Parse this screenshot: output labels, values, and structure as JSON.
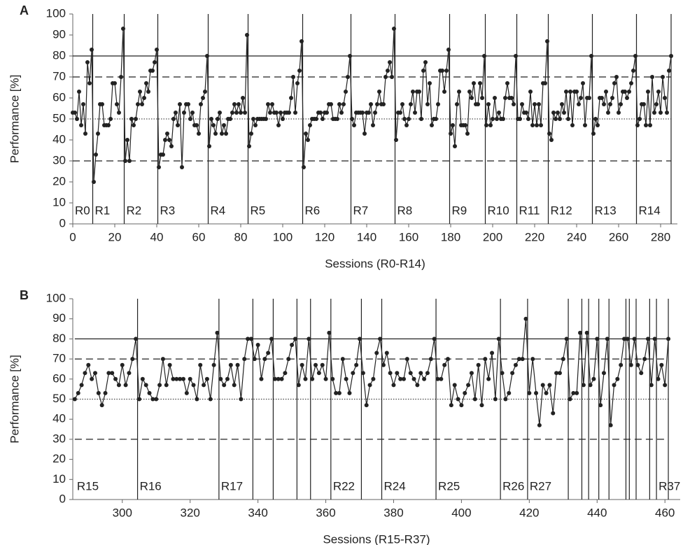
{
  "chart_data": [
    {
      "type": "line",
      "panel_label": "A",
      "ylabel": "Performance [%]",
      "xlabel": "Sessions (R0-R14)",
      "color": "#222222",
      "xlim": [
        0,
        288
      ],
      "ylim": [
        0,
        100
      ],
      "xticks": [
        0,
        20,
        40,
        60,
        80,
        100,
        120,
        140,
        160,
        180,
        200,
        220,
        240,
        260,
        280
      ],
      "yticks": [
        0,
        10,
        20,
        30,
        40,
        50,
        60,
        70,
        80,
        90,
        100
      ],
      "reference_lines": [
        {
          "value": 80,
          "style": "solid"
        },
        {
          "value": 70,
          "style": "dashed"
        },
        {
          "value": 50,
          "style": "dotted"
        },
        {
          "value": 30,
          "style": "dashed"
        }
      ],
      "regions": [
        {
          "label": "R0",
          "end": 9.5
        },
        {
          "label": "R1",
          "end": 24.5
        },
        {
          "label": "R2",
          "end": 40.5
        },
        {
          "label": "R3",
          "end": 64.5
        },
        {
          "label": "R4",
          "end": 83.5
        },
        {
          "label": "R5",
          "end": 109.5
        },
        {
          "label": "R6",
          "end": 132.5
        },
        {
          "label": "R7",
          "end": 153.5
        },
        {
          "label": "R8",
          "end": 179.5
        },
        {
          "label": "R9",
          "end": 196.5
        },
        {
          "label": "R10",
          "end": 211.5
        },
        {
          "label": "R11",
          "end": 226.5
        },
        {
          "label": "R12",
          "end": 247.5
        },
        {
          "label": "R13",
          "end": 268.5
        },
        {
          "label": "R14",
          "end": 285
        }
      ],
      "x": [
        0,
        1,
        2,
        3,
        4,
        5,
        6,
        7,
        8,
        9,
        10,
        11,
        12,
        13,
        14,
        15,
        16,
        17,
        18,
        19,
        20,
        21,
        22,
        23,
        24,
        25,
        26,
        27,
        28,
        29,
        30,
        31,
        32,
        33,
        34,
        35,
        36,
        37,
        38,
        39,
        40,
        41,
        42,
        43,
        44,
        45,
        46,
        47,
        48,
        49,
        50,
        51,
        52,
        53,
        54,
        55,
        56,
        57,
        58,
        59,
        60,
        61,
        62,
        63,
        64,
        65,
        66,
        67,
        68,
        69,
        70,
        71,
        72,
        73,
        74,
        75,
        76,
        77,
        78,
        79,
        80,
        81,
        82,
        83,
        84,
        85,
        86,
        87,
        88,
        89,
        90,
        91,
        92,
        93,
        94,
        95,
        96,
        97,
        98,
        99,
        100,
        101,
        102,
        103,
        104,
        105,
        106,
        107,
        108,
        109,
        110,
        111,
        112,
        113,
        114,
        115,
        116,
        117,
        118,
        119,
        120,
        121,
        122,
        123,
        124,
        125,
        126,
        127,
        128,
        129,
        130,
        131,
        132,
        133,
        134,
        135,
        136,
        137,
        138,
        139,
        140,
        141,
        142,
        143,
        144,
        145,
        146,
        147,
        148,
        149,
        150,
        151,
        152,
        153,
        154,
        155,
        156,
        157,
        158,
        159,
        160,
        161,
        162,
        163,
        164,
        165,
        166,
        167,
        168,
        169,
        170,
        171,
        172,
        173,
        174,
        175,
        176,
        177,
        178,
        179,
        180,
        181,
        182,
        183,
        184,
        185,
        186,
        187,
        188,
        189,
        190,
        191,
        192,
        193,
        194,
        195,
        196,
        197,
        198,
        199,
        200,
        201,
        202,
        203,
        204,
        205,
        206,
        207,
        208,
        209,
        210,
        211,
        212,
        213,
        214,
        215,
        216,
        217,
        218,
        219,
        220,
        221,
        222,
        223,
        224,
        225,
        226,
        227,
        228,
        229,
        230,
        231,
        232,
        233,
        234,
        235,
        236,
        237,
        238,
        239,
        240,
        241,
        242,
        243,
        244,
        245,
        246,
        247,
        248,
        249,
        250,
        251,
        252,
        253,
        254,
        255,
        256,
        257,
        258,
        259,
        260,
        261,
        262,
        263,
        264,
        265,
        266,
        267,
        268,
        269,
        270,
        271,
        272,
        273,
        274,
        275,
        276,
        277,
        278,
        279,
        280,
        281,
        282,
        283,
        284,
        285
      ],
      "values": [
        53,
        53,
        50,
        63,
        47,
        57,
        43,
        77,
        67,
        83,
        20,
        33,
        43,
        57,
        57,
        47,
        47,
        47,
        50,
        67,
        67,
        57,
        53,
        70,
        93,
        30,
        40,
        30,
        50,
        47,
        50,
        57,
        63,
        57,
        60,
        67,
        63,
        73,
        73,
        77,
        83,
        27,
        33,
        33,
        40,
        43,
        40,
        37,
        50,
        53,
        47,
        57,
        27,
        53,
        57,
        57,
        50,
        53,
        47,
        47,
        43,
        57,
        60,
        63,
        80,
        37,
        50,
        47,
        43,
        50,
        53,
        43,
        47,
        43,
        50,
        50,
        53,
        57,
        53,
        57,
        53,
        60,
        53,
        90,
        37,
        43,
        50,
        47,
        50,
        50,
        50,
        50,
        50,
        57,
        53,
        57,
        53,
        53,
        47,
        53,
        50,
        53,
        53,
        53,
        60,
        70,
        53,
        67,
        73,
        87,
        27,
        43,
        40,
        47,
        50,
        50,
        50,
        53,
        53,
        50,
        53,
        53,
        57,
        57,
        50,
        50,
        50,
        57,
        53,
        57,
        63,
        70,
        80,
        50,
        47,
        53,
        53,
        53,
        53,
        43,
        53,
        53,
        57,
        47,
        53,
        57,
        63,
        57,
        57,
        70,
        73,
        77,
        70,
        93,
        40,
        53,
        53,
        57,
        50,
        47,
        50,
        57,
        63,
        53,
        63,
        63,
        50,
        73,
        77,
        57,
        67,
        47,
        50,
        50,
        57,
        73,
        73,
        63,
        73,
        83,
        43,
        47,
        37,
        57,
        63,
        47,
        47,
        47,
        43,
        63,
        60,
        67,
        57,
        57,
        67,
        60,
        80,
        47,
        57,
        47,
        50,
        60,
        50,
        53,
        50,
        50,
        60,
        67,
        60,
        60,
        57,
        80,
        50,
        50,
        57,
        53,
        53,
        50,
        63,
        47,
        57,
        47,
        57,
        47,
        67,
        67,
        87,
        43,
        40,
        53,
        50,
        53,
        50,
        57,
        53,
        63,
        50,
        63,
        47,
        63,
        63,
        57,
        60,
        67,
        47,
        60,
        60,
        80,
        43,
        50,
        47,
        60,
        60,
        57,
        63,
        53,
        57,
        60,
        67,
        70,
        53,
        57,
        63,
        63,
        60,
        63,
        67,
        73,
        80,
        47,
        50,
        57,
        57,
        47,
        63,
        47,
        70,
        53,
        57,
        63,
        53,
        70,
        60,
        53,
        73,
        80
      ]
    },
    {
      "type": "line",
      "panel_label": "B",
      "ylabel": "Performance [%]",
      "xlabel": "Sessions (R15-R37)",
      "color": "#222222",
      "xlim": [
        285.4,
        464.5
      ],
      "ylim": [
        0,
        100
      ],
      "xticks": [
        300,
        320,
        340,
        360,
        380,
        400,
        420,
        440,
        460
      ],
      "yticks": [
        0,
        10,
        20,
        30,
        40,
        50,
        60,
        70,
        80,
        90,
        100
      ],
      "reference_lines": [
        {
          "value": 80,
          "style": "solid"
        },
        {
          "value": 70,
          "style": "dashed"
        },
        {
          "value": 50,
          "style": "dotted"
        },
        {
          "value": 30,
          "style": "dashed"
        }
      ],
      "regions": [
        {
          "label": "R15",
          "end": 304.5
        },
        {
          "label": "R16",
          "end": 328.5
        },
        {
          "label": "R17",
          "end": 338.5
        },
        {
          "label": null,
          "end": 344.5
        },
        {
          "label": null,
          "end": 351.5
        },
        {
          "label": null,
          "end": 355.5
        },
        {
          "label": null,
          "end": 361.5
        },
        {
          "label": "R22",
          "end": 370.5
        },
        {
          "label": null,
          "end": 376.5
        },
        {
          "label": "R24",
          "end": 392.5
        },
        {
          "label": "R25",
          "end": 411.5
        },
        {
          "label": "R26",
          "end": 419.5
        },
        {
          "label": "R27",
          "end": 431.5
        },
        {
          "label": null,
          "end": 435.5
        },
        {
          "label": null,
          "end": 437.5
        },
        {
          "label": null,
          "end": 440.5
        },
        {
          "label": null,
          "end": 443.5
        },
        {
          "label": null,
          "end": 448.5
        },
        {
          "label": null,
          "end": 449.5
        },
        {
          "label": null,
          "end": 451.5
        },
        {
          "label": null,
          "end": 455.5
        },
        {
          "label": null,
          "end": 457.5
        },
        {
          "label": "R37",
          "end": 461
        }
      ],
      "x": [
        286,
        287,
        288,
        289,
        290,
        291,
        292,
        293,
        294,
        295,
        296,
        297,
        298,
        299,
        300,
        301,
        302,
        303,
        304,
        305,
        306,
        307,
        308,
        309,
        310,
        311,
        312,
        313,
        314,
        315,
        316,
        317,
        318,
        319,
        320,
        321,
        322,
        323,
        324,
        325,
        326,
        327,
        328,
        329,
        330,
        331,
        332,
        333,
        334,
        335,
        336,
        337,
        338,
        339,
        340,
        341,
        342,
        343,
        344,
        345,
        346,
        347,
        348,
        349,
        350,
        351,
        352,
        353,
        354,
        355,
        356,
        357,
        358,
        359,
        360,
        361,
        362,
        363,
        364,
        365,
        366,
        367,
        368,
        369,
        370,
        371,
        372,
        373,
        374,
        375,
        376,
        377,
        378,
        379,
        380,
        381,
        382,
        383,
        384,
        385,
        386,
        387,
        388,
        389,
        390,
        391,
        392,
        393,
        394,
        395,
        396,
        397,
        398,
        399,
        400,
        401,
        402,
        403,
        404,
        405,
        406,
        407,
        408,
        409,
        410,
        411,
        412,
        413,
        414,
        415,
        416,
        417,
        418,
        419,
        420,
        421,
        422,
        423,
        424,
        425,
        426,
        427,
        428,
        429,
        430,
        431,
        432,
        433,
        434,
        435,
        436,
        437,
        438,
        439,
        440,
        441,
        442,
        443,
        444,
        445,
        446,
        447,
        448,
        449,
        450,
        451,
        452,
        453,
        454,
        455,
        456,
        457,
        458,
        459,
        460,
        461
      ],
      "values": [
        50,
        53,
        57,
        63,
        67,
        60,
        63,
        53,
        47,
        53,
        63,
        63,
        60,
        57,
        67,
        57,
        63,
        70,
        80,
        50,
        60,
        57,
        53,
        50,
        50,
        57,
        70,
        57,
        67,
        60,
        60,
        60,
        60,
        53,
        60,
        57,
        50,
        67,
        57,
        60,
        50,
        67,
        83,
        60,
        57,
        60,
        67,
        57,
        67,
        50,
        70,
        80,
        80,
        70,
        77,
        60,
        70,
        73,
        80,
        60,
        60,
        60,
        63,
        70,
        77,
        80,
        57,
        67,
        60,
        80,
        60,
        67,
        63,
        67,
        60,
        83,
        60,
        53,
        53,
        70,
        60,
        53,
        63,
        67,
        80,
        63,
        47,
        57,
        60,
        73,
        80,
        67,
        73,
        63,
        57,
        63,
        60,
        60,
        70,
        63,
        60,
        57,
        63,
        60,
        63,
        70,
        80,
        60,
        60,
        67,
        70,
        47,
        57,
        50,
        47,
        53,
        57,
        63,
        50,
        67,
        47,
        70,
        60,
        73,
        50,
        80,
        63,
        50,
        53,
        63,
        67,
        70,
        70,
        90,
        53,
        70,
        53,
        37,
        57,
        53,
        57,
        43,
        63,
        63,
        70,
        80,
        50,
        53,
        53,
        83,
        57,
        83,
        57,
        60,
        80,
        47,
        63,
        80,
        37,
        57,
        60,
        67,
        80,
        80,
        67,
        80,
        67,
        63,
        70,
        80,
        57,
        80,
        60,
        67,
        57,
        80
      ]
    }
  ]
}
